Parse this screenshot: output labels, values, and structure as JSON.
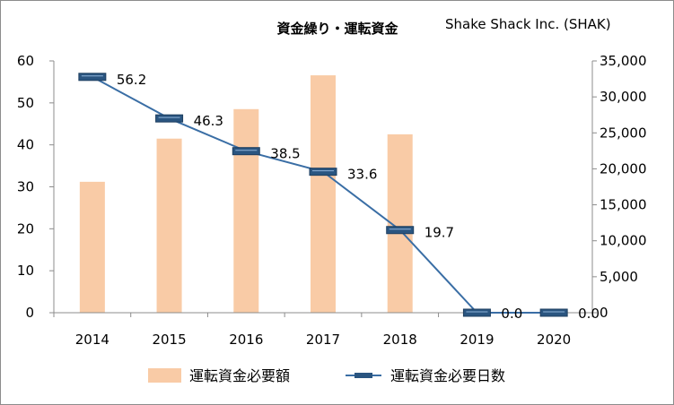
{
  "chart_data": {
    "type": "bar+line",
    "title": "資金繰り・運転資金",
    "company": "Shake Shack Inc. (SHAK)",
    "categories": [
      "2014",
      "2015",
      "2016",
      "2017",
      "2018",
      "2019",
      "2020"
    ],
    "series": [
      {
        "name": "運転資金必要額",
        "type": "bar",
        "axis": "right",
        "color": "#f9cba6",
        "values": [
          18200,
          24200,
          28300,
          33000,
          24800,
          0,
          0
        ]
      },
      {
        "name": "運転資金必要日数",
        "type": "line",
        "axis": "left",
        "color": "#3a6ea5",
        "marker_color": "#2a5580",
        "values": [
          56.2,
          46.3,
          38.5,
          33.6,
          19.7,
          0.0,
          0.0
        ],
        "labels": [
          "56.2",
          "46.3",
          "38.5",
          "33.6",
          "19.7",
          "0.0",
          "0.0"
        ]
      }
    ],
    "y_left": {
      "min": 0,
      "max": 60,
      "ticks": [
        "0",
        "10",
        "20",
        "30",
        "40",
        "50",
        "60"
      ]
    },
    "y_right": {
      "min": 0,
      "max": 35000,
      "ticks": [
        "0",
        "5,000",
        "10,000",
        "15,000",
        "20,000",
        "25,000",
        "30,000",
        "35,000"
      ]
    },
    "legend_position": "bottom",
    "grid": false
  }
}
